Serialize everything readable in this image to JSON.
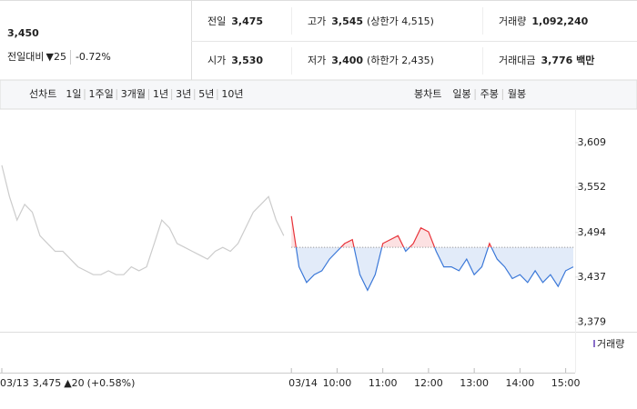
{
  "header": {
    "price": "3,450",
    "change_label": "전일대비",
    "change": "▼25",
    "change_rate": "-0.72%",
    "color": "#1a56d6",
    "stats": [
      {
        "label": "전일",
        "value": "3,475",
        "color": "#222222"
      },
      {
        "label": "고가",
        "value": "3,545",
        "note": "(상한가 4,515)",
        "color": "#e0262b"
      },
      {
        "label": "거래량",
        "value": "1,092,240",
        "color": "#222222"
      },
      {
        "label": "시가",
        "value": "3,530",
        "color": "#e0262b"
      },
      {
        "label": "저가",
        "value": "3,400",
        "note": "(하한가 2,435)",
        "color": "#1a56d6"
      },
      {
        "label": "거래대금",
        "value": "3,776 백만",
        "color": "#222222"
      }
    ]
  },
  "tabs": {
    "line_label": "선차트",
    "line": [
      "1일",
      "1주일",
      "3개월",
      "1년",
      "3년",
      "5년",
      "10년"
    ],
    "line_active": 0,
    "candle_label": "봉차트",
    "candle": [
      "일봉",
      "주봉",
      "월봉"
    ]
  },
  "chart_data": {
    "type": "line",
    "categories": [
      "03/13",
      null,
      null,
      null,
      null,
      null,
      null,
      null,
      null,
      null,
      null,
      null,
      null,
      null,
      null,
      null,
      null,
      null,
      null,
      null,
      null,
      null,
      null,
      null,
      null,
      null,
      null,
      null,
      null,
      null,
      null,
      null,
      null,
      null,
      null,
      null,
      null,
      null,
      "03/14",
      null,
      null,
      null,
      null,
      null,
      "10:00",
      null,
      null,
      null,
      null,
      null,
      "11:00",
      null,
      null,
      null,
      null,
      null,
      "12:00",
      null,
      null,
      null,
      null,
      null,
      "13:00",
      null,
      null,
      null,
      null,
      null,
      "14:00",
      null,
      null,
      null,
      null,
      null,
      "15:00",
      null
    ],
    "series": [
      {
        "color": "#cccccc",
        "values": [
          3580,
          3540,
          3510,
          3530,
          3520,
          3490,
          3480,
          3470,
          3470,
          3460,
          3450,
          3445,
          3440,
          3440,
          3445,
          3440,
          3440,
          3450,
          3445,
          3450,
          3480,
          3510,
          3500,
          3480,
          3475,
          3470,
          3465,
          3460,
          3470,
          3475,
          3470,
          3480,
          3500,
          3520,
          3530,
          3540,
          3510,
          3490,
          null,
          null,
          null,
          null,
          null,
          null,
          null,
          null,
          null,
          null,
          null,
          null,
          null,
          null,
          null,
          null,
          null,
          null,
          null,
          null,
          null,
          null,
          null,
          null,
          null,
          null,
          null,
          null,
          null,
          null,
          null,
          null,
          null,
          null,
          null,
          null,
          null,
          null
        ]
      },
      {
        "color": "#3b78d8",
        "up_color": "#e8333a",
        "values": [
          null,
          null,
          null,
          null,
          null,
          null,
          null,
          null,
          null,
          null,
          null,
          null,
          null,
          null,
          null,
          null,
          null,
          null,
          null,
          null,
          null,
          null,
          null,
          null,
          null,
          null,
          null,
          null,
          null,
          null,
          null,
          null,
          null,
          null,
          null,
          null,
          null,
          null,
          3515,
          3450,
          3430,
          3440,
          3445,
          3460,
          3470,
          3480,
          3485,
          3440,
          3420,
          3440,
          3480,
          3485,
          3490,
          3470,
          3480,
          3500,
          3495,
          3470,
          3450,
          3450,
          3445,
          3460,
          3440,
          3450,
          3480,
          3460,
          3450,
          3435,
          3440,
          3430,
          3445,
          3430,
          3440,
          3425,
          3445,
          3450
        ]
      }
    ],
    "baseline": 3475,
    "ylim": [
      3367,
      3652
    ],
    "yticks": [
      {
        "value": 3379,
        "label": "3,379"
      },
      {
        "value": 3437,
        "label": "3,437"
      },
      {
        "value": 3494,
        "label": "3,494"
      },
      {
        "value": 3552,
        "label": "3,552"
      },
      {
        "value": 3609,
        "label": "3,609"
      }
    ],
    "grid": false,
    "volume_label": "거래량"
  },
  "footer": {
    "price": "3,475",
    "change": "▲20",
    "rate": "(+0.58%)",
    "color": "#e0262b"
  }
}
